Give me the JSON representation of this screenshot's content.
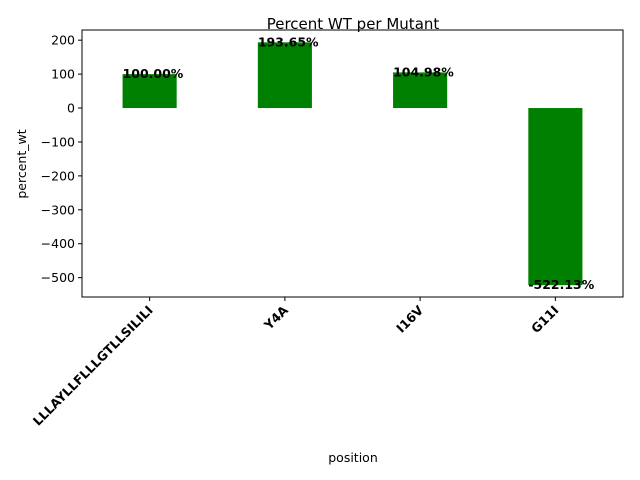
{
  "chart_data": {
    "type": "bar",
    "title": "Percent WT per Mutant",
    "xlabel": "position",
    "ylabel": "percent_wt",
    "categories": [
      "LLLAYLLFLLLGTLLSILILI",
      "Y4A",
      "I16V",
      "G11I"
    ],
    "values": [
      100.0,
      193.65,
      104.98,
      -522.13
    ],
    "data_labels": [
      "100.00%",
      "193.65%",
      "104.98%",
      "-522.13%"
    ],
    "yticks": [
      200,
      100,
      0,
      -100,
      -200,
      -300,
      -400,
      -500
    ],
    "ytick_labels": [
      "200",
      "100",
      "0",
      "−100",
      "−200",
      "−300",
      "−400",
      "−500"
    ],
    "ylim": [
      -557,
      230
    ],
    "bar_color": "#008000",
    "grid": false,
    "legend": "none"
  }
}
